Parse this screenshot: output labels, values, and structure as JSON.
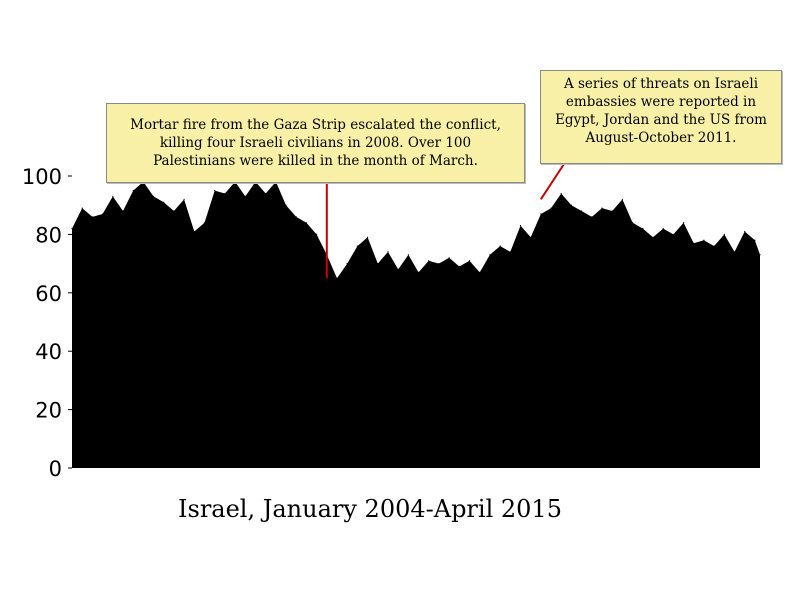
{
  "chart_data": {
    "type": "area",
    "title": "",
    "xlabel": "Israel, January 2004-April 2015",
    "ylabel": "",
    "ylim": [
      0,
      100
    ],
    "yticks": [
      0,
      20,
      40,
      60,
      80,
      100
    ],
    "xlim": [
      "2004-01",
      "2015-04"
    ],
    "grid": false,
    "colors": {
      "area": "#000000",
      "annotation_fill": "#f7f0a6",
      "callout_line": "#cc0000"
    },
    "series": [
      {
        "x": [
          "2004-01",
          "2004-03",
          "2004-05",
          "2004-07",
          "2004-09",
          "2004-11",
          "2005-01",
          "2005-03",
          "2005-05",
          "2005-07",
          "2005-09",
          "2005-11",
          "2006-01",
          "2006-03",
          "2006-05",
          "2006-07",
          "2006-09",
          "2006-11",
          "2007-01",
          "2007-03",
          "2007-05",
          "2007-07",
          "2007-09",
          "2007-11",
          "2008-01",
          "2008-03",
          "2008-05",
          "2008-07",
          "2008-09",
          "2008-11",
          "2009-01",
          "2009-03",
          "2009-05",
          "2009-07",
          "2009-09",
          "2009-11",
          "2010-01",
          "2010-03",
          "2010-05",
          "2010-07",
          "2010-09",
          "2010-11",
          "2011-01",
          "2011-03",
          "2011-05",
          "2011-07",
          "2011-09",
          "2011-11",
          "2012-01",
          "2012-03",
          "2012-05",
          "2012-07",
          "2012-09",
          "2012-11",
          "2013-01",
          "2013-03",
          "2013-05",
          "2013-07",
          "2013-09",
          "2013-11",
          "2014-01",
          "2014-03",
          "2014-05",
          "2014-07",
          "2014-09",
          "2014-11",
          "2015-01",
          "2015-03",
          "2015-04"
        ],
        "values": [
          82,
          89,
          86,
          87,
          93,
          88,
          95,
          98,
          93,
          91,
          88,
          92,
          81,
          84,
          95,
          94,
          98,
          93,
          98,
          94,
          98,
          90,
          86,
          84,
          80,
          73,
          65,
          70,
          76,
          79,
          70,
          74,
          68,
          73,
          67,
          71,
          70,
          72,
          69,
          71,
          67,
          73,
          76,
          74,
          83,
          79,
          87,
          89,
          94,
          90,
          88,
          86,
          89,
          88,
          92,
          84,
          82,
          79,
          82,
          80,
          84,
          77,
          78,
          76,
          80,
          74,
          81,
          78,
          73
        ]
      }
    ],
    "annotations": [
      {
        "lines": [
          "Mortar fire from the Gaza Strip escalated the conflict,",
          "killing four Israeli civilians in 2008. Over 100",
          "Palestinians were killed in the month of March."
        ],
        "target_x": "2008-03",
        "target_y": 65
      },
      {
        "lines": [
          "A series of threats on Israeli",
          "embassies were reported in",
          "Egypt, Jordan and the US from",
          "August-October 2011."
        ],
        "target_x": "2011-09",
        "target_y": 92
      }
    ]
  }
}
